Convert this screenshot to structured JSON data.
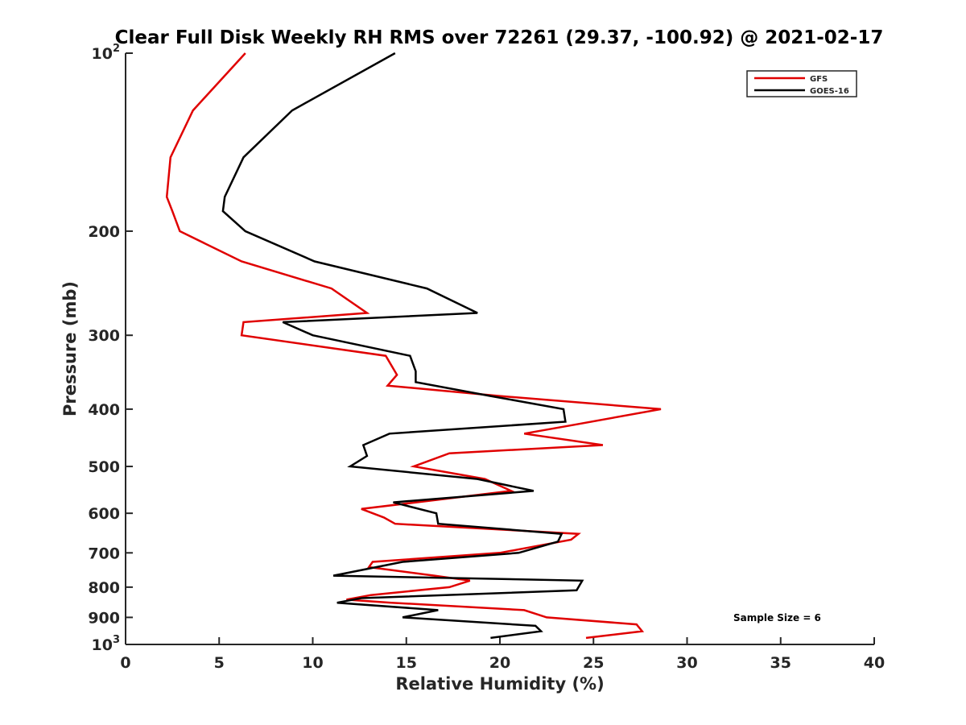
{
  "chart_data": {
    "type": "line",
    "title": "Clear Full Disk Weekly RH RMS over 72261 (29.37, -100.92) @ 2021-02-17",
    "xlabel": "Relative Humidity (%)",
    "ylabel": "Pressure (mb)",
    "xlim": [
      0,
      40
    ],
    "ylim": [
      1000,
      100
    ],
    "y_scale": "log",
    "y_reversed": true,
    "grid": false,
    "legend_position": "top-right",
    "x_ticks": [
      {
        "value": 0,
        "label": "0"
      },
      {
        "value": 5,
        "label": "5"
      },
      {
        "value": 10,
        "label": "10"
      },
      {
        "value": 15,
        "label": "15"
      },
      {
        "value": 20,
        "label": "20"
      },
      {
        "value": 25,
        "label": "25"
      },
      {
        "value": 30,
        "label": "30"
      },
      {
        "value": 35,
        "label": "35"
      },
      {
        "value": 40,
        "label": "40"
      }
    ],
    "y_ticks": [
      {
        "value": 100,
        "base": "10",
        "exp": "2"
      },
      {
        "value": 200,
        "label": "200"
      },
      {
        "value": 300,
        "label": "300"
      },
      {
        "value": 400,
        "label": "400"
      },
      {
        "value": 500,
        "label": "500"
      },
      {
        "value": 600,
        "label": "600"
      },
      {
        "value": 700,
        "label": "700"
      },
      {
        "value": 800,
        "label": "800"
      },
      {
        "value": 900,
        "label": "900"
      },
      {
        "value": 1000,
        "base": "10",
        "exp": "3"
      }
    ],
    "series": [
      {
        "name": "GFS",
        "color": "#e00000",
        "points": [
          {
            "x": 6.4,
            "p": 100
          },
          {
            "x": 3.6,
            "p": 125
          },
          {
            "x": 2.4,
            "p": 150
          },
          {
            "x": 2.2,
            "p": 175
          },
          {
            "x": 2.5,
            "p": 185
          },
          {
            "x": 2.9,
            "p": 200
          },
          {
            "x": 6.2,
            "p": 225
          },
          {
            "x": 11.0,
            "p": 250
          },
          {
            "x": 12.9,
            "p": 275
          },
          {
            "x": 6.3,
            "p": 285
          },
          {
            "x": 6.2,
            "p": 300
          },
          {
            "x": 13.9,
            "p": 325
          },
          {
            "x": 14.5,
            "p": 350
          },
          {
            "x": 14.0,
            "p": 365
          },
          {
            "x": 20.0,
            "p": 380
          },
          {
            "x": 28.6,
            "p": 400
          },
          {
            "x": 24.0,
            "p": 425
          },
          {
            "x": 21.3,
            "p": 440
          },
          {
            "x": 25.5,
            "p": 460
          },
          {
            "x": 17.3,
            "p": 475
          },
          {
            "x": 15.4,
            "p": 500
          },
          {
            "x": 19.2,
            "p": 525
          },
          {
            "x": 20.6,
            "p": 550
          },
          {
            "x": 12.6,
            "p": 590
          },
          {
            "x": 13.8,
            "p": 610
          },
          {
            "x": 14.4,
            "p": 625
          },
          {
            "x": 24.2,
            "p": 650
          },
          {
            "x": 23.8,
            "p": 665
          },
          {
            "x": 20.0,
            "p": 700
          },
          {
            "x": 13.2,
            "p": 725
          },
          {
            "x": 13.0,
            "p": 740
          },
          {
            "x": 16.5,
            "p": 765
          },
          {
            "x": 18.4,
            "p": 780
          },
          {
            "x": 17.3,
            "p": 800
          },
          {
            "x": 13.1,
            "p": 825
          },
          {
            "x": 11.8,
            "p": 840
          },
          {
            "x": 14.2,
            "p": 850
          },
          {
            "x": 21.3,
            "p": 875
          },
          {
            "x": 22.5,
            "p": 900
          },
          {
            "x": 27.3,
            "p": 925
          },
          {
            "x": 27.6,
            "p": 950
          },
          {
            "x": 24.6,
            "p": 975
          }
        ]
      },
      {
        "name": "GOES-16",
        "color": "#000000",
        "points": [
          {
            "x": 14.4,
            "p": 100
          },
          {
            "x": 8.9,
            "p": 125
          },
          {
            "x": 6.3,
            "p": 150
          },
          {
            "x": 5.3,
            "p": 175
          },
          {
            "x": 5.2,
            "p": 185
          },
          {
            "x": 6.4,
            "p": 200
          },
          {
            "x": 10.1,
            "p": 225
          },
          {
            "x": 16.1,
            "p": 250
          },
          {
            "x": 18.8,
            "p": 275
          },
          {
            "x": 8.4,
            "p": 285
          },
          {
            "x": 10.0,
            "p": 300
          },
          {
            "x": 15.2,
            "p": 325
          },
          {
            "x": 15.5,
            "p": 345
          },
          {
            "x": 15.5,
            "p": 360
          },
          {
            "x": 19.5,
            "p": 380
          },
          {
            "x": 23.4,
            "p": 400
          },
          {
            "x": 23.5,
            "p": 420
          },
          {
            "x": 14.1,
            "p": 440
          },
          {
            "x": 12.7,
            "p": 460
          },
          {
            "x": 12.9,
            "p": 480
          },
          {
            "x": 12.0,
            "p": 500
          },
          {
            "x": 18.8,
            "p": 525
          },
          {
            "x": 21.8,
            "p": 550
          },
          {
            "x": 14.3,
            "p": 575
          },
          {
            "x": 16.6,
            "p": 600
          },
          {
            "x": 16.7,
            "p": 625
          },
          {
            "x": 23.3,
            "p": 650
          },
          {
            "x": 23.1,
            "p": 670
          },
          {
            "x": 21.0,
            "p": 700
          },
          {
            "x": 14.8,
            "p": 725
          },
          {
            "x": 11.1,
            "p": 765
          },
          {
            "x": 24.4,
            "p": 780
          },
          {
            "x": 24.1,
            "p": 810
          },
          {
            "x": 12.6,
            "p": 835
          },
          {
            "x": 11.3,
            "p": 850
          },
          {
            "x": 16.7,
            "p": 875
          },
          {
            "x": 14.8,
            "p": 900
          },
          {
            "x": 21.9,
            "p": 930
          },
          {
            "x": 22.2,
            "p": 950
          },
          {
            "x": 19.5,
            "p": 975
          }
        ]
      }
    ],
    "annotations": [
      "Sample Size = 6"
    ]
  }
}
